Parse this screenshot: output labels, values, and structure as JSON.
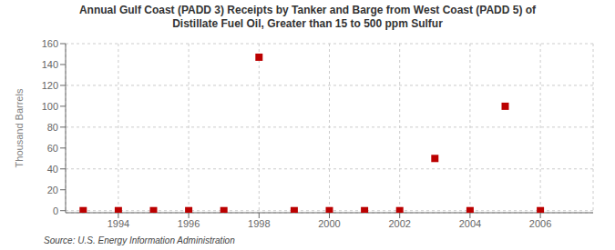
{
  "chart_data": {
    "type": "scatter",
    "title": "Annual Gulf Coast (PADD 3) Receipts by Tanker and Barge from West Coast (PADD 5) of\nDistillate Fuel Oil, Greater than 15 to 500 ppm Sulfur",
    "ylabel": "Thousand Barrels",
    "source": "Source: U.S. Energy Information Administration",
    "x": [
      1993,
      1994,
      1995,
      1996,
      1997,
      1998,
      1999,
      2000,
      2001,
      2002,
      2003,
      2004,
      2005,
      2006
    ],
    "values": [
      0,
      0,
      0,
      0,
      0,
      147,
      0,
      0,
      0,
      0,
      50,
      0,
      100,
      0
    ],
    "xlim": [
      1992.5,
      2007.5
    ],
    "xticks": [
      1994,
      1996,
      1998,
      2000,
      2002,
      2004,
      2006
    ],
    "ylim": [
      -2,
      160
    ],
    "yticks": [
      0,
      20,
      40,
      60,
      80,
      100,
      120,
      140,
      160
    ],
    "color": "#bb0000",
    "marker": "square",
    "grid": true
  }
}
